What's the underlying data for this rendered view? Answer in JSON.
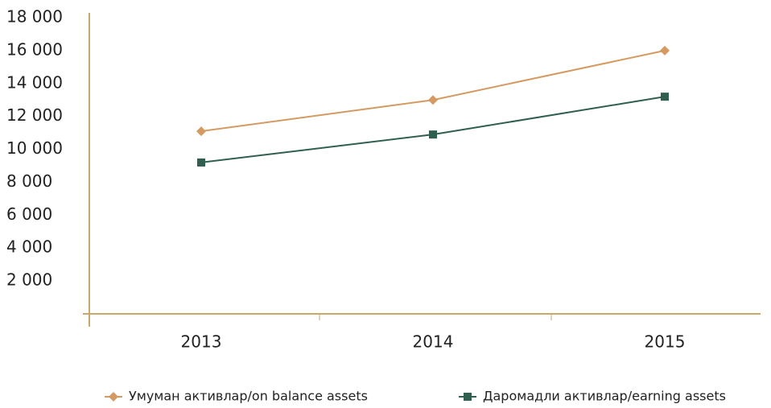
{
  "chart_data": {
    "type": "line",
    "categories": [
      "2013",
      "2014",
      "2015"
    ],
    "series": [
      {
        "name": "Умуман активлар/on balance assets",
        "color": "#d49a62",
        "marker": "diamond",
        "values": [
          11100,
          13000,
          16000
        ]
      },
      {
        "name": "Даромадли активлар/earning assets",
        "color": "#2f5f4f",
        "marker": "square",
        "values": [
          9200,
          10900,
          13200
        ]
      }
    ],
    "ylim": [
      0,
      18000
    ],
    "yticks": [
      {
        "value": 2000,
        "label": "2 000"
      },
      {
        "value": 4000,
        "label": "4 000"
      },
      {
        "value": 6000,
        "label": "6 000"
      },
      {
        "value": 8000,
        "label": "8 000"
      },
      {
        "value": 10000,
        "label": "10 000"
      },
      {
        "value": 12000,
        "label": "12 000"
      },
      {
        "value": 14000,
        "label": "14 000"
      },
      {
        "value": 16000,
        "label": "16 000"
      },
      {
        "value": 18000,
        "label": "18 000"
      }
    ],
    "legend": "bottom"
  }
}
